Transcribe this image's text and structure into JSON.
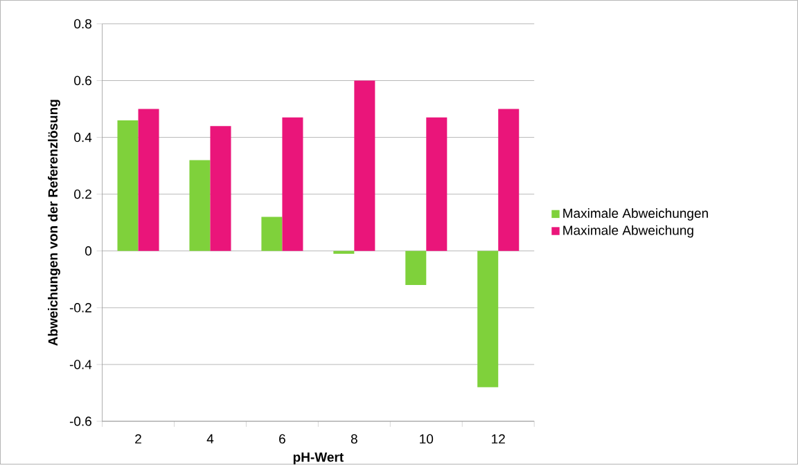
{
  "chart_data": {
    "type": "bar",
    "xlabel": "pH-Wert",
    "ylabel": "Abweichungen von der Referenzlösung",
    "categories": [
      "2",
      "4",
      "6",
      "8",
      "10",
      "12"
    ],
    "series": [
      {
        "name": "Maximale Abweichungen",
        "color": "#7fd13b",
        "values": [
          0.46,
          0.32,
          0.12,
          -0.01,
          -0.12,
          -0.48
        ]
      },
      {
        "name": "Maximale Abweichung",
        "color": "#ea157a",
        "values": [
          0.5,
          0.44,
          0.47,
          0.6,
          0.47,
          0.5
        ]
      }
    ],
    "ylim": [
      -0.6,
      0.8
    ],
    "yticks": [
      -0.6,
      -0.4,
      -0.2,
      0,
      0.2,
      0.4,
      0.6,
      0.8
    ],
    "grid": "y",
    "legend": "right"
  }
}
